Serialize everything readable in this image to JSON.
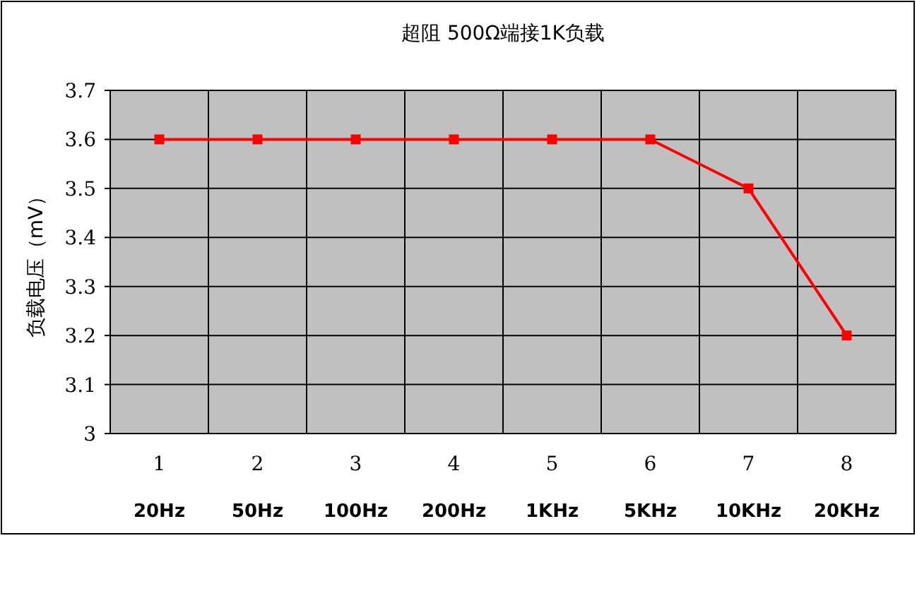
{
  "chart_data": {
    "type": "line",
    "title": "超阻 500Ω端接1K负载",
    "ylabel": "负载电压（mV）",
    "categories": [
      "1",
      "2",
      "3",
      "4",
      "5",
      "6",
      "7",
      "8"
    ],
    "annotations": [
      "20Hz",
      "50Hz",
      "100Hz",
      "200Hz",
      "1KHz",
      "5KHz",
      "10KHz",
      "20KHz"
    ],
    "series": [
      {
        "color": "#ff0000",
        "values": [
          3.6,
          3.6,
          3.6,
          3.6,
          3.6,
          3.6,
          3.5,
          3.2
        ]
      }
    ],
    "ylim": [
      3,
      3.7
    ],
    "yticks": [
      3,
      3.1,
      3.2,
      3.3,
      3.4,
      3.5,
      3.6,
      3.7
    ],
    "grid": true,
    "marker": "square",
    "line_style": "solid"
  }
}
